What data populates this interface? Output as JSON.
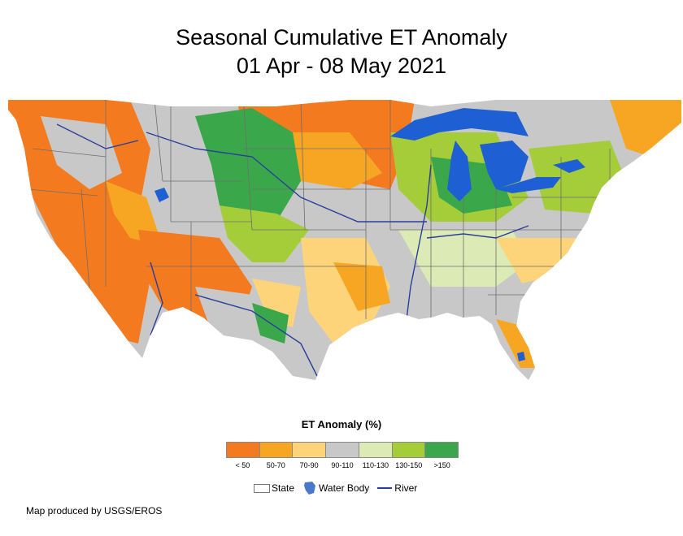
{
  "title": {
    "line1": "Seasonal Cumulative ET Anomaly",
    "line2": "01 Apr - 08 May 2021"
  },
  "legend": {
    "title": "ET Anomaly (%)",
    "classes": [
      {
        "label": "< 50",
        "color": "#f47a20"
      },
      {
        "label": "50-70",
        "color": "#f7a623"
      },
      {
        "label": "70-90",
        "color": "#fdd47a"
      },
      {
        "label": "90-110",
        "color": "#c8c8c8"
      },
      {
        "label": "110-130",
        "color": "#dcebb5"
      },
      {
        "label": "130-150",
        "color": "#a5cd3a"
      },
      {
        "label": ">150",
        "color": "#3aa84a"
      }
    ],
    "keys": {
      "state": "State",
      "water_body": "Water Body",
      "river": "River"
    }
  },
  "colors": {
    "water": "#1e5fd4",
    "river": "#2a3f9b",
    "state_line": "#6e6e6e"
  },
  "credit": "Map produced by USGS/EROS"
}
